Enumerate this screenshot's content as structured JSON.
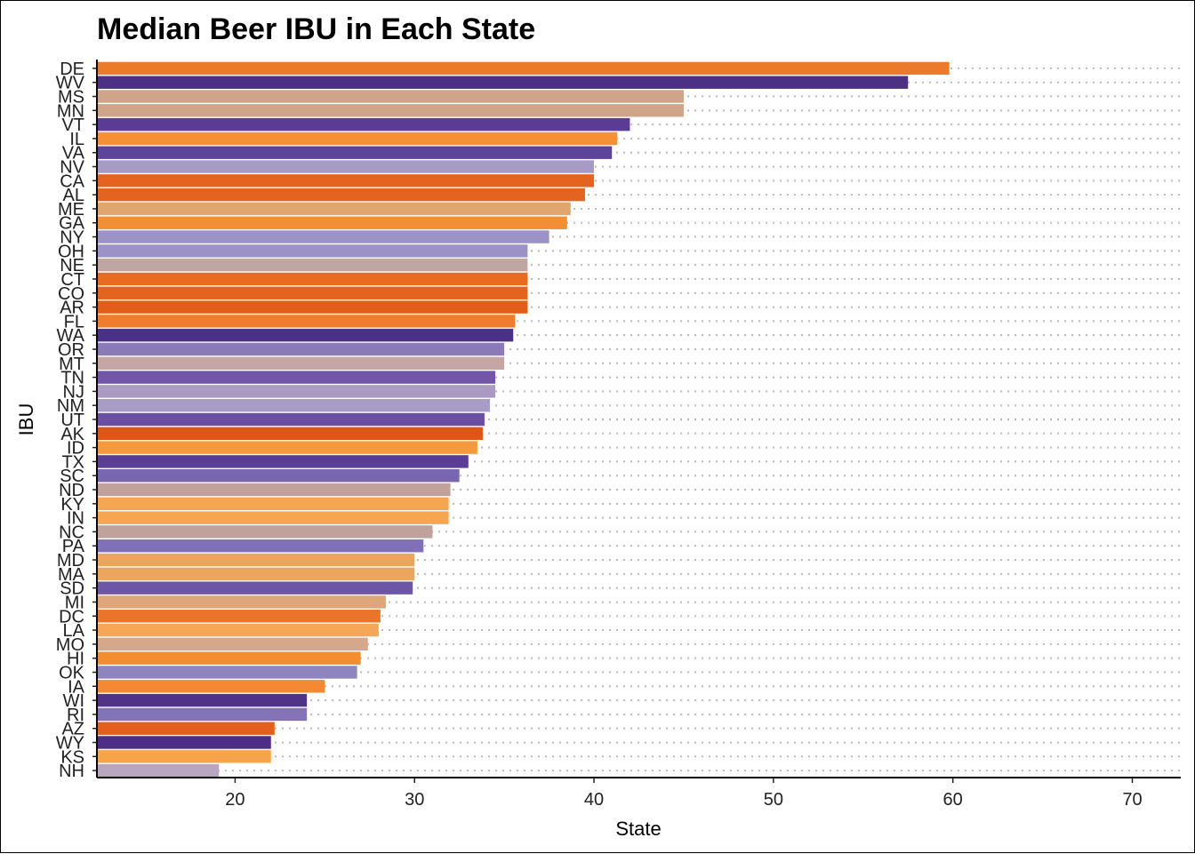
{
  "chart_data": {
    "type": "bar",
    "orientation": "horizontal",
    "title": "Median Beer IBU in Each State",
    "xlabel": "State",
    "ylabel": "IBU",
    "xlim": [
      12.3,
      72.7
    ],
    "xticks": [
      20,
      30,
      40,
      50,
      60,
      70
    ],
    "grid": "dotted horizontal lines per category",
    "legend": "none",
    "categories": [
      "DE",
      "WV",
      "MS",
      "MN",
      "VT",
      "IL",
      "VA",
      "NV",
      "CA",
      "AL",
      "ME",
      "GA",
      "NY",
      "OH",
      "NE",
      "CT",
      "CO",
      "AR",
      "FL",
      "WA",
      "OR",
      "MT",
      "TN",
      "NJ",
      "NM",
      "UT",
      "AK",
      "ID",
      "TX",
      "SC",
      "ND",
      "KY",
      "IN",
      "NC",
      "PA",
      "MD",
      "MA",
      "SD",
      "MI",
      "DC",
      "LA",
      "MO",
      "HI",
      "OK",
      "IA",
      "WI",
      "RI",
      "AZ",
      "WY",
      "KS",
      "NH"
    ],
    "values": [
      59.8,
      57.5,
      45,
      45,
      42,
      41.3,
      41,
      40,
      40,
      39.5,
      38.7,
      38.5,
      37.5,
      36.3,
      36.3,
      36.3,
      36.3,
      36.3,
      35.6,
      35.5,
      35,
      35,
      34.5,
      34.5,
      34.2,
      33.9,
      33.8,
      33.5,
      33,
      32.5,
      32,
      31.9,
      31.9,
      31,
      30.5,
      30,
      30,
      29.9,
      28.4,
      28.1,
      28,
      27.4,
      27,
      26.8,
      25,
      24,
      24,
      22.2,
      22,
      22,
      19.1
    ],
    "colors": [
      "#ec7a2b",
      "#4b3084",
      "#cfa489",
      "#cfa489",
      "#5a3c94",
      "#f68f36",
      "#5e439b",
      "#a79ac5",
      "#e4631e",
      "#e4631e",
      "#e1a66d",
      "#f28f35",
      "#9d92c7",
      "#9d92c7",
      "#c0a6a2",
      "#e96b21",
      "#e4631e",
      "#e05d1a",
      "#ef7d2b",
      "#4b3185",
      "#8a7ab8",
      "#c5a6a2",
      "#7257a8",
      "#ab9bc3",
      "#a89cc7",
      "#6a4ea2",
      "#de5515",
      "#f59a3c",
      "#5b3d95",
      "#7966b0",
      "#c0a19c",
      "#f6a550",
      "#f6a550",
      "#c0a29c",
      "#8070b8",
      "#eca55c",
      "#eca55c",
      "#6e56a6",
      "#dfa679",
      "#ea7428",
      "#f5a657",
      "#d5a88c",
      "#f28e30",
      "#8e84c0",
      "#f38a33",
      "#4e3386",
      "#8473b7",
      "#e25f1c",
      "#4e2d84",
      "#f6a449",
      "#b8a5c0"
    ]
  }
}
